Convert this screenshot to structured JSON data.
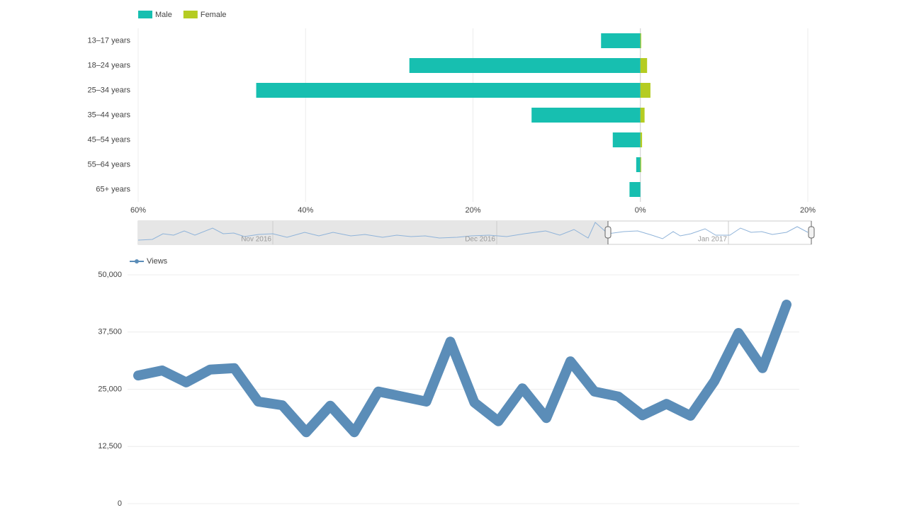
{
  "chart_data": [
    {
      "type": "bar",
      "orientation": "horizontal",
      "categories": [
        "13–17 years",
        "18–24 years",
        "25–34 years",
        "35–44 years",
        "45–54 years",
        "55–64 years",
        "65+ years"
      ],
      "series": [
        {
          "name": "Male",
          "color": "#17bfb0",
          "values": [
            -4.7,
            -27.6,
            -45.9,
            -13,
            -3.3,
            -0.5,
            -1.3
          ]
        },
        {
          "name": "Female",
          "color": "#b5cc22",
          "values": [
            0.1,
            0.8,
            1.2,
            0.5,
            0.2,
            0.1,
            0
          ]
        }
      ],
      "xlim": [
        -60,
        20
      ],
      "xticks": [
        {
          "value": -60,
          "label": "60%"
        },
        {
          "value": -40,
          "label": "40%"
        },
        {
          "value": -20,
          "label": "20%"
        },
        {
          "value": 0,
          "label": "0%"
        },
        {
          "value": 20,
          "label": "20%"
        }
      ],
      "grid": true,
      "legend": "top-left"
    },
    {
      "type": "line",
      "categories": [
        null,
        null,
        null,
        null,
        null,
        null,
        null,
        null,
        null,
        null,
        null,
        null,
        null,
        null,
        null,
        null,
        null,
        null,
        null,
        null,
        null,
        null,
        null,
        null,
        null,
        null,
        null,
        null
      ],
      "series": [
        {
          "name": "Views",
          "color": "#5b8db8",
          "values": [
            28000,
            29100,
            26500,
            29300,
            29600,
            22300,
            21500,
            15600,
            21400,
            15600,
            24500,
            23400,
            22300,
            35400,
            22100,
            18000,
            25200,
            18700,
            31100,
            24500,
            23400,
            19300,
            21800,
            19200,
            26800,
            37300,
            29600,
            43500
          ]
        }
      ],
      "ylim": [
        0,
        50000
      ],
      "yticks": [
        0,
        {
          "value": 12500,
          "label": "12,500"
        },
        {
          "value": 25000,
          "label": "25,000"
        },
        {
          "value": 37500,
          "label": "37,500"
        },
        {
          "value": 50000,
          "label": "50,000"
        }
      ],
      "grid": true,
      "legend": "top-left"
    }
  ],
  "navigator": {
    "labels": [
      "Nov 2016",
      "Dec 2016",
      "Jan 2017"
    ]
  }
}
